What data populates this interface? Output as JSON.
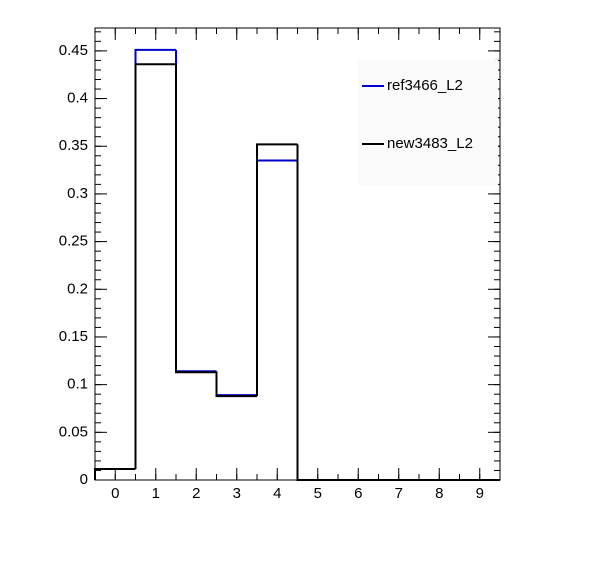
{
  "chart_data": {
    "type": "histogram",
    "bins": [
      -0.5,
      0.5,
      1.5,
      2.5,
      3.5,
      4.5,
      5.5,
      6.5,
      7.5,
      8.5,
      9.5
    ],
    "series": [
      {
        "name": "ref3466_L2",
        "color": "#0000cc",
        "values": [
          0.0115,
          0.451,
          0.114,
          0.089,
          0.335,
          0,
          0,
          0,
          0,
          0
        ]
      },
      {
        "name": "new3483_L2",
        "color": "#000000",
        "values": [
          0.0115,
          0.436,
          0.113,
          0.088,
          0.352,
          0,
          0,
          0,
          0,
          0
        ]
      }
    ],
    "xlim": [
      -0.5,
      9.5
    ],
    "xticks": [
      0,
      1,
      2,
      3,
      4,
      5,
      6,
      7,
      8,
      9
    ],
    "ylim": [
      0,
      0.474
    ],
    "yticks": [
      0,
      0.05,
      0.1,
      0.15,
      0.2,
      0.25,
      0.3,
      0.35,
      0.4,
      0.45
    ],
    "legend": "top-right"
  }
}
